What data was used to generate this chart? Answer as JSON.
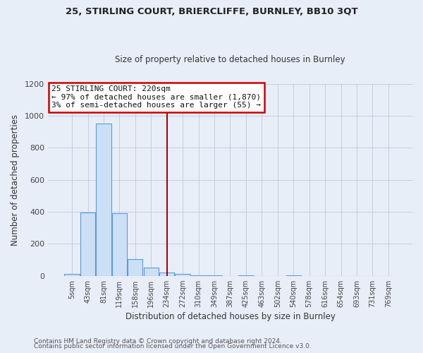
{
  "title1": "25, STIRLING COURT, BRIERCLIFFE, BURNLEY, BB10 3QT",
  "title2": "Size of property relative to detached houses in Burnley",
  "xlabel": "Distribution of detached houses by size in Burnley",
  "ylabel": "Number of detached properties",
  "bar_labels": [
    "5sqm",
    "43sqm",
    "81sqm",
    "119sqm",
    "158sqm",
    "196sqm",
    "234sqm",
    "272sqm",
    "310sqm",
    "349sqm",
    "387sqm",
    "425sqm",
    "463sqm",
    "502sqm",
    "540sqm",
    "578sqm",
    "616sqm",
    "654sqm",
    "693sqm",
    "731sqm",
    "769sqm"
  ],
  "bar_values": [
    10,
    395,
    950,
    390,
    105,
    50,
    22,
    10,
    5,
    2,
    0,
    2,
    0,
    0,
    1,
    0,
    0,
    0,
    0,
    0,
    0
  ],
  "bar_color": "#cce0f5",
  "bar_edge_color": "#5b9bd5",
  "vline_x": 6.0,
  "vline_color": "#aa0000",
  "annotation_line1": "25 STIRLING COURT: 220sqm",
  "annotation_line2": "← 97% of detached houses are smaller (1,870)",
  "annotation_line3": "3% of semi-detached houses are larger (55) →",
  "annotation_box_color": "#ffffff",
  "annotation_box_edge": "#cc0000",
  "ylim": [
    0,
    1200
  ],
  "yticks": [
    0,
    200,
    400,
    600,
    800,
    1000,
    1200
  ],
  "footer1": "Contains HM Land Registry data © Crown copyright and database right 2024.",
  "footer2": "Contains public sector information licensed under the Open Government Licence v3.0.",
  "bg_color": "#e8eef8",
  "plot_bg_color": "#e8eef8"
}
